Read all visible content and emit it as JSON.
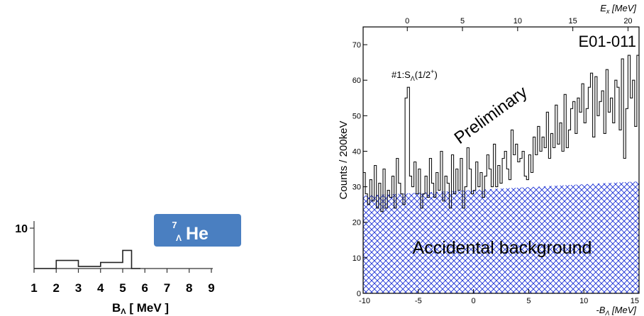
{
  "left_chart": {
    "y_tick_label": "10",
    "x_tick_labels": [
      "1",
      "2",
      "3",
      "4",
      "5",
      "6",
      "7",
      "8",
      "9"
    ],
    "xlabel_main": "B",
    "xlabel_sub": "Λ",
    "xlabel_unit": "[ MeV ]",
    "badge": {
      "mass": "7",
      "sub": "Λ",
      "element": "He",
      "color": "#4a7fc1"
    }
  },
  "right_chart": {
    "top_axis": {
      "label_main": "E",
      "label_sub": "x",
      "label_unit": "[MeV]"
    },
    "ylabel": "Counts / 200keV",
    "xlabel_main": "-B",
    "xlabel_sub": "Λ",
    "xlabel_unit": "[MeV]",
    "experiment": "E01-011",
    "peak_label_pre": "#1:S",
    "peak_label_sub": "Λ",
    "peak_label_mid": "(1/2",
    "peak_label_sup": "+",
    "peak_label_post": ")",
    "watermark": "Preliminary",
    "background_label": "Accidental background",
    "background_color": "#1a2fd6"
  },
  "chart_data": [
    {
      "type": "line",
      "x": [
        1,
        2,
        2,
        3,
        3,
        4,
        4,
        5,
        5,
        5.4,
        5.4,
        5.8,
        5.8
      ],
      "y": [
        0,
        0,
        2,
        2,
        0.5,
        0.5,
        1.5,
        1.5,
        4.5,
        4.5,
        0,
        0,
        0
      ],
      "xlabel": "BΛ [ MeV ]",
      "xlim": [
        1,
        9
      ],
      "ylim": [
        0,
        10
      ],
      "x_ticks": [
        1,
        2,
        3,
        4,
        5,
        6,
        7,
        8,
        9
      ],
      "y_ticks": [
        10
      ]
    },
    {
      "type": "line",
      "ylabel": "Counts / 200keV",
      "xlabel": "-BΛ [MeV]",
      "xlim": [
        -10,
        15
      ],
      "ylim": [
        0,
        75
      ],
      "x_ticks": [
        -10,
        -5,
        0,
        5,
        10,
        15
      ],
      "y_ticks": [
        0,
        10,
        20,
        30,
        40,
        50,
        60,
        70
      ],
      "top_axis": {
        "label": "Ex [MeV]",
        "ticks": [
          0,
          5,
          10,
          15,
          20
        ],
        "offset": -6
      },
      "annotations": [
        "E01-011",
        "#1:SΛ(1/2+)",
        "Preliminary",
        "Accidental background"
      ],
      "grid": false,
      "x": [
        -10.0,
        -9.8,
        -9.6,
        -9.4,
        -9.2,
        -9.0,
        -8.8,
        -8.6,
        -8.4,
        -8.2,
        -8.0,
        -7.8,
        -7.6,
        -7.4,
        -7.2,
        -7.0,
        -6.8,
        -6.6,
        -6.4,
        -6.2,
        -6.0,
        -5.8,
        -5.6,
        -5.4,
        -5.2,
        -5.0,
        -4.8,
        -4.6,
        -4.4,
        -4.2,
        -4.0,
        -3.8,
        -3.6,
        -3.4,
        -3.2,
        -3.0,
        -2.8,
        -2.6,
        -2.4,
        -2.2,
        -2.0,
        -1.8,
        -1.6,
        -1.4,
        -1.2,
        -1.0,
        -0.8,
        -0.6,
        -0.4,
        -0.2,
        0.0,
        0.2,
        0.4,
        0.6,
        0.8,
        1.0,
        1.2,
        1.4,
        1.6,
        1.8,
        2.0,
        2.2,
        2.4,
        2.6,
        2.8,
        3.0,
        3.2,
        3.4,
        3.6,
        3.8,
        4.0,
        4.2,
        4.4,
        4.6,
        4.8,
        5.0,
        5.2,
        5.4,
        5.6,
        5.8,
        6.0,
        6.2,
        6.4,
        6.6,
        6.8,
        7.0,
        7.2,
        7.4,
        7.6,
        7.8,
        8.0,
        8.2,
        8.4,
        8.6,
        8.8,
        9.0,
        9.2,
        9.4,
        9.6,
        9.8,
        10.0,
        10.2,
        10.4,
        10.6,
        10.8,
        11.0,
        11.2,
        11.4,
        11.6,
        11.8,
        12.0,
        12.2,
        12.4,
        12.6,
        12.8,
        13.0,
        13.2,
        13.4,
        13.6,
        13.8,
        14.0,
        14.2,
        14.4,
        14.6,
        14.8
      ],
      "y": [
        34,
        28,
        25,
        32,
        26,
        36,
        24,
        31,
        23,
        35,
        24,
        29,
        27,
        33,
        24,
        38,
        31,
        28,
        25,
        55,
        58,
        33,
        30,
        37,
        28,
        35,
        24,
        28,
        33,
        27,
        38,
        31,
        27,
        34,
        29,
        40,
        26,
        33,
        31,
        24,
        39,
        28,
        35,
        29,
        38,
        24,
        30,
        41,
        35,
        28,
        29,
        37,
        30,
        34,
        27,
        33,
        39,
        35,
        30,
        42,
        30,
        36,
        31,
        38,
        40,
        35,
        32,
        46,
        39,
        42,
        37,
        38,
        40,
        33,
        32,
        39,
        34,
        44,
        39,
        47,
        40,
        44,
        41,
        51,
        38,
        45,
        41,
        53,
        42,
        48,
        40,
        56,
        41,
        46,
        52,
        54,
        45,
        55,
        51,
        59,
        48,
        52,
        58,
        62,
        44,
        61,
        50,
        54,
        57,
        45,
        63,
        51,
        55,
        48,
        60,
        58,
        46,
        66,
        38,
        52,
        67,
        55,
        60,
        47,
        67
      ]
    }
  ]
}
